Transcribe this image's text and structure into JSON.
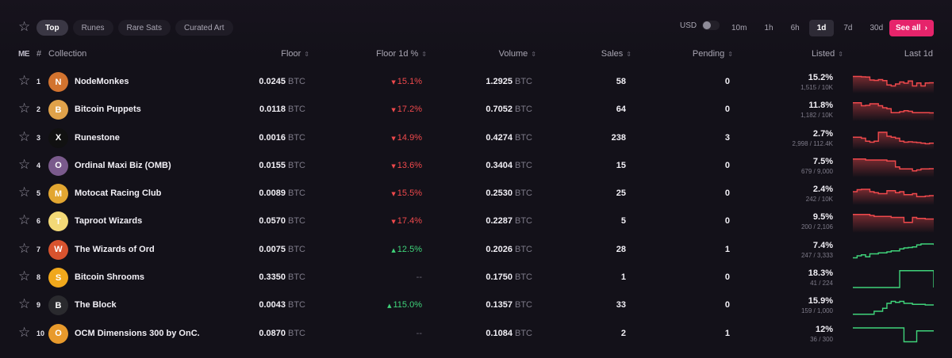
{
  "filters": {
    "tabs": [
      {
        "label": "Top",
        "active": true
      },
      {
        "label": "Runes",
        "active": false
      },
      {
        "label": "Rare Sats",
        "active": false
      },
      {
        "label": "Curated Art",
        "active": false
      }
    ],
    "currency_label": "USD",
    "currency_toggle_on": false,
    "periods": [
      {
        "label": "10m",
        "active": false
      },
      {
        "label": "1h",
        "active": false
      },
      {
        "label": "6h",
        "active": false
      },
      {
        "label": "1d",
        "active": true
      },
      {
        "label": "7d",
        "active": false
      },
      {
        "label": "30d",
        "active": false
      }
    ],
    "see_all_label": "See all",
    "see_all_color": "#e6246b"
  },
  "table": {
    "headers": {
      "brand": "ME",
      "rank": "#",
      "collection": "Collection",
      "floor": "Floor",
      "floor_change": "Floor 1d %",
      "volume": "Volume",
      "sales": "Sales",
      "pending": "Pending",
      "listed": "Listed",
      "last": "Last 1d"
    },
    "unit": "BTC",
    "colors": {
      "down": "#f0494c",
      "up": "#3fd47a"
    },
    "rows": [
      {
        "rank": "1",
        "name": "NodeMonkes",
        "floor": "0.0245",
        "change": "15.1%",
        "direction": "down",
        "volume": "1.2925",
        "sales": "58",
        "pending": "0",
        "listed_pct": "15.2%",
        "listed_count": "1,515 / 10K",
        "avatar": {
          "letter": "N",
          "color": "#d2732f"
        },
        "trend": [
          0.78,
          0.78,
          0.76,
          0.75,
          0.6,
          0.58,
          0.62,
          0.57,
          0.35,
          0.3,
          0.4,
          0.5,
          0.44,
          0.55,
          0.3,
          0.45,
          0.3,
          0.45,
          0.46,
          0.46
        ]
      },
      {
        "rank": "2",
        "name": "Bitcoin Puppets",
        "floor": "0.0118",
        "change": "17.2%",
        "direction": "down",
        "volume": "0.7052",
        "sales": "64",
        "pending": "0",
        "listed_pct": "11.8%",
        "listed_count": "1,182 / 10K",
        "avatar": {
          "letter": "B",
          "color": "#e0a24a"
        },
        "trend": [
          0.85,
          0.85,
          0.7,
          0.72,
          0.8,
          0.8,
          0.7,
          0.6,
          0.55,
          0.35,
          0.35,
          0.4,
          0.45,
          0.42,
          0.35,
          0.35,
          0.35,
          0.35,
          0.34,
          0.34
        ]
      },
      {
        "rank": "3",
        "name": "Runestone",
        "floor": "0.0016",
        "change": "14.9%",
        "direction": "down",
        "volume": "0.4274",
        "sales": "238",
        "pending": "3",
        "listed_pct": "2.7%",
        "listed_count": "2,998 / 112.4K",
        "avatar": {
          "letter": "X",
          "color": "#111111"
        },
        "trend": [
          0.55,
          0.55,
          0.5,
          0.35,
          0.3,
          0.35,
          0.8,
          0.8,
          0.6,
          0.55,
          0.5,
          0.35,
          0.3,
          0.32,
          0.3,
          0.28,
          0.25,
          0.22,
          0.25,
          0.25
        ]
      },
      {
        "rank": "4",
        "name": "Ordinal Maxi Biz (OMB)",
        "floor": "0.0155",
        "change": "13.6%",
        "direction": "down",
        "volume": "0.3404",
        "sales": "15",
        "pending": "0",
        "listed_pct": "7.5%",
        "listed_count": "679 / 9,000",
        "avatar": {
          "letter": "O",
          "color": "#7a5a8c"
        },
        "trend": [
          0.85,
          0.85,
          0.85,
          0.8,
          0.8,
          0.8,
          0.8,
          0.8,
          0.75,
          0.75,
          0.45,
          0.35,
          0.35,
          0.35,
          0.25,
          0.3,
          0.35,
          0.35,
          0.36,
          0.36
        ]
      },
      {
        "rank": "5",
        "name": "Motocat Racing Club",
        "floor": "0.0089",
        "change": "15.5%",
        "direction": "down",
        "volume": "0.2530",
        "sales": "25",
        "pending": "0",
        "listed_pct": "2.4%",
        "listed_count": "242 / 10K",
        "avatar": {
          "letter": "M",
          "color": "#e2a631"
        },
        "trend": [
          0.6,
          0.7,
          0.72,
          0.72,
          0.6,
          0.55,
          0.5,
          0.5,
          0.65,
          0.65,
          0.55,
          0.6,
          0.45,
          0.45,
          0.5,
          0.35,
          0.35,
          0.38,
          0.4,
          0.4
        ]
      },
      {
        "rank": "6",
        "name": "Taproot Wizards",
        "floor": "0.0570",
        "change": "17.4%",
        "direction": "down",
        "volume": "0.2287",
        "sales": "5",
        "pending": "0",
        "listed_pct": "9.5%",
        "listed_count": "200 / 2,106",
        "avatar": {
          "letter": "T",
          "color": "#f3d977"
        },
        "trend": [
          0.85,
          0.85,
          0.85,
          0.85,
          0.8,
          0.75,
          0.75,
          0.75,
          0.75,
          0.7,
          0.7,
          0.7,
          0.45,
          0.45,
          0.7,
          0.65,
          0.65,
          0.62,
          0.62,
          0.6
        ]
      },
      {
        "rank": "7",
        "name": "The Wizards of Ord",
        "floor": "0.0075",
        "change": "12.5%",
        "direction": "up",
        "volume": "0.2026",
        "sales": "28",
        "pending": "1",
        "listed_pct": "7.4%",
        "listed_count": "247 / 3,333",
        "avatar": {
          "letter": "W",
          "color": "#d8532e"
        },
        "trend": [
          0.1,
          0.2,
          0.25,
          0.15,
          0.3,
          0.3,
          0.35,
          0.35,
          0.4,
          0.45,
          0.45,
          0.55,
          0.6,
          0.62,
          0.65,
          0.75,
          0.8,
          0.8,
          0.8,
          0.75
        ]
      },
      {
        "rank": "8",
        "name": "Bitcoin Shrooms",
        "floor": "0.3350",
        "change": "--",
        "direction": "none",
        "volume": "0.1750",
        "sales": "1",
        "pending": "0",
        "listed_pct": "18.3%",
        "listed_count": "41 / 224",
        "avatar": {
          "letter": "S",
          "color": "#f0a81c"
        },
        "trend": [
          0.0,
          0.0,
          0.0,
          0.0,
          0.0,
          0.0,
          0.0,
          0.0,
          0.0,
          0.0,
          0.0,
          0.85,
          0.85,
          0.85,
          0.85,
          0.85,
          0.85,
          0.85,
          0.85,
          0.0
        ]
      },
      {
        "rank": "9",
        "name": "The Block",
        "floor": "0.0043",
        "change": "115.0%",
        "direction": "up",
        "volume": "0.1357",
        "sales": "33",
        "pending": "0",
        "listed_pct": "15.9%",
        "listed_count": "159 / 1,000",
        "avatar": {
          "letter": "B",
          "color": "#2a2a2e"
        },
        "trend": [
          0.05,
          0.05,
          0.05,
          0.05,
          0.05,
          0.2,
          0.2,
          0.35,
          0.6,
          0.7,
          0.65,
          0.7,
          0.6,
          0.6,
          0.55,
          0.55,
          0.55,
          0.52,
          0.52,
          0.52
        ]
      },
      {
        "rank": "10",
        "name": "OCM Dimensions 300 by OnC...",
        "floor": "0.0870",
        "change": "--",
        "direction": "none",
        "volume": "0.1084",
        "sales": "2",
        "pending": "1",
        "listed_pct": "12%",
        "listed_count": "36 / 300",
        "avatar": {
          "letter": "O",
          "color": "#e89a2c"
        },
        "trend": [
          0.8,
          0.8,
          0.8,
          0.8,
          0.8,
          0.8,
          0.8,
          0.8,
          0.8,
          0.8,
          0.8,
          0.8,
          0.1,
          0.1,
          0.1,
          0.65,
          0.65,
          0.65,
          0.65,
          0.65
        ]
      }
    ]
  }
}
